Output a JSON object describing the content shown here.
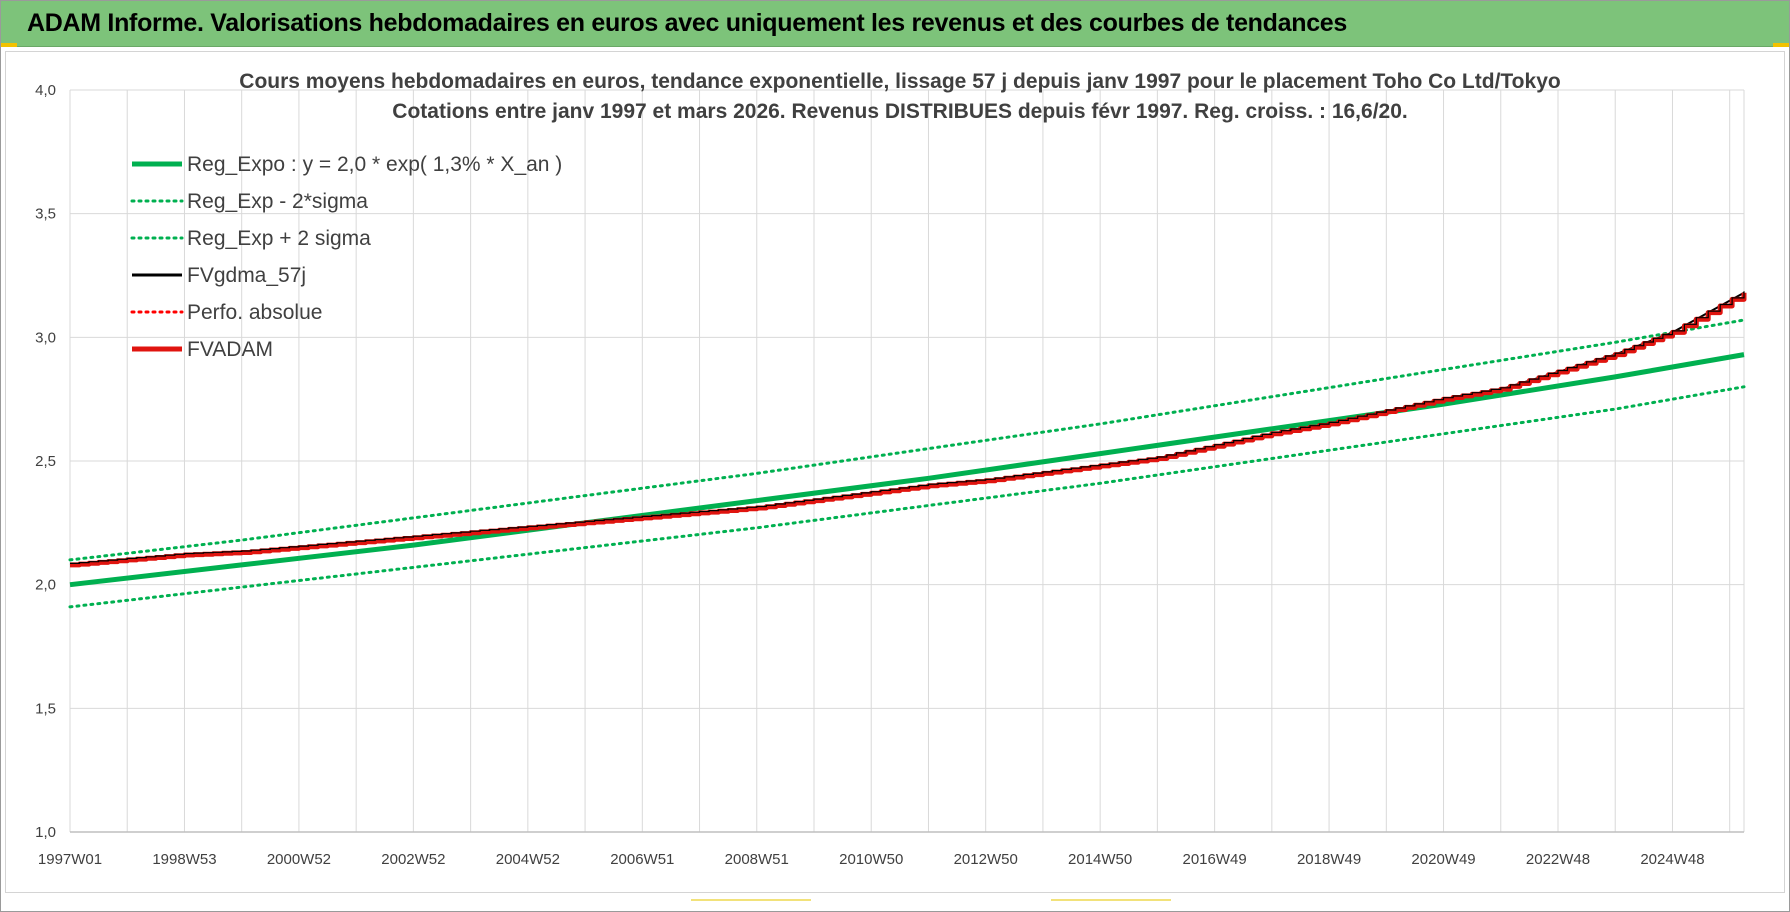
{
  "header": {
    "title": "ADAM Informe. Valorisations hebdomadaires en euros avec uniquement les revenus et des courbes de tendances"
  },
  "chart_data": {
    "type": "line",
    "title_line1": "Cours moyens hebdomadaires en euros, tendance exponentielle, lissage 57 j depuis janv 1997  pour le placement Toho Co Ltd/Tokyo",
    "title_line2": "Cotations entre janv 1997 et mars 2026. Revenus DISTRIBUES depuis févr 1997. Reg.  croiss. : 16,6/20.",
    "xlabel": "",
    "ylabel": "",
    "xlim": [
      1997.0,
      2026.25
    ],
    "ylim": [
      1.0,
      4.0
    ],
    "y_ticks": [
      1.0,
      1.5,
      2.0,
      2.5,
      3.0,
      3.5,
      4.0
    ],
    "y_tick_labels": [
      "1,0",
      "1,5",
      "2,0",
      "2,5",
      "3,0",
      "3,5",
      "4,0"
    ],
    "x_ticks": [
      1997.0,
      1999.0,
      2001.0,
      2003.0,
      2005.0,
      2007.0,
      2009.0,
      2011.0,
      2013.0,
      2015.0,
      2017.0,
      2019.0,
      2021.0,
      2023.0,
      2025.0
    ],
    "x_tick_labels": [
      "1997W01",
      "1998W53",
      "2000W52",
      "2002W52",
      "2004W52",
      "2006W51",
      "2008W51",
      "2010W50",
      "2012W50",
      "2014W50",
      "2016W49",
      "2018W49",
      "2020W49",
      "2022W48",
      "2024W48"
    ],
    "grid": true,
    "legend_position": "top-left",
    "series": [
      {
        "name": "Reg_Expo : y = 2,0 * exp( 1,3% *  X_an )",
        "color": "#00b050",
        "style": "solid-thick",
        "x": [
          1997.0,
          2000.0,
          2003.0,
          2006.0,
          2009.0,
          2012.0,
          2015.0,
          2018.0,
          2021.0,
          2024.0,
          2026.25
        ],
        "values": [
          2.0,
          2.08,
          2.16,
          2.25,
          2.34,
          2.43,
          2.53,
          2.63,
          2.73,
          2.84,
          2.93
        ]
      },
      {
        "name": "Reg_Exp - 2*sigma",
        "color": "#00b050",
        "style": "dotted",
        "x": [
          1997.0,
          2000.0,
          2003.0,
          2006.0,
          2009.0,
          2012.0,
          2015.0,
          2018.0,
          2021.0,
          2024.0,
          2026.25
        ],
        "values": [
          1.91,
          1.99,
          2.07,
          2.15,
          2.23,
          2.32,
          2.41,
          2.51,
          2.61,
          2.71,
          2.8
        ]
      },
      {
        "name": "Reg_Exp + 2 sigma",
        "color": "#00b050",
        "style": "dotted",
        "x": [
          1997.0,
          2000.0,
          2003.0,
          2006.0,
          2009.0,
          2012.0,
          2015.0,
          2018.0,
          2021.0,
          2024.0,
          2026.25
        ],
        "values": [
          2.1,
          2.18,
          2.27,
          2.36,
          2.45,
          2.55,
          2.65,
          2.76,
          2.87,
          2.98,
          3.07
        ]
      },
      {
        "name": "FVgdma_57j",
        "color": "#000000",
        "style": "solid",
        "x": [
          1997.0,
          1998.0,
          1999.0,
          2000.0,
          2001.0,
          2002.0,
          2003.0,
          2004.0,
          2005.0,
          2006.0,
          2007.0,
          2008.0,
          2009.0,
          2010.0,
          2011.0,
          2012.0,
          2013.0,
          2014.0,
          2015.0,
          2016.0,
          2017.0,
          2018.0,
          2019.0,
          2020.0,
          2021.0,
          2022.0,
          2023.0,
          2024.0,
          2025.0,
          2026.25
        ],
        "values": [
          2.08,
          2.1,
          2.12,
          2.13,
          2.15,
          2.17,
          2.19,
          2.21,
          2.23,
          2.25,
          2.27,
          2.29,
          2.31,
          2.34,
          2.37,
          2.4,
          2.42,
          2.45,
          2.48,
          2.51,
          2.56,
          2.61,
          2.65,
          2.7,
          2.75,
          2.79,
          2.86,
          2.93,
          3.02,
          3.18
        ]
      },
      {
        "name": "Perfo. absolue",
        "color": "#ff0000",
        "style": "dotted",
        "x": [],
        "values": []
      },
      {
        "name": "FVADAM",
        "color": "#e0140f",
        "style": "step-thick",
        "x": [
          1997.0,
          1998.0,
          1999.0,
          2000.0,
          2001.0,
          2002.0,
          2003.0,
          2004.0,
          2005.0,
          2006.0,
          2007.0,
          2008.0,
          2009.0,
          2010.0,
          2011.0,
          2012.0,
          2013.0,
          2014.0,
          2015.0,
          2016.0,
          2017.0,
          2018.0,
          2019.0,
          2020.0,
          2021.0,
          2022.0,
          2023.0,
          2024.0,
          2025.0,
          2026.25
        ],
        "values": [
          2.08,
          2.1,
          2.12,
          2.13,
          2.15,
          2.17,
          2.19,
          2.21,
          2.23,
          2.25,
          2.27,
          2.29,
          2.31,
          2.34,
          2.37,
          2.4,
          2.42,
          2.45,
          2.48,
          2.51,
          2.56,
          2.61,
          2.65,
          2.7,
          2.75,
          2.79,
          2.86,
          2.93,
          3.02,
          3.18
        ]
      }
    ]
  }
}
